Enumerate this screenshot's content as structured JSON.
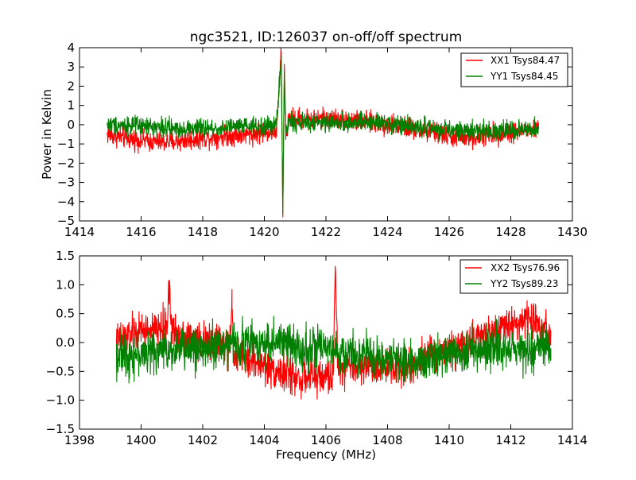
{
  "chart_data": [
    {
      "type": "line",
      "title": "ngc3521, ID:126037 on-off/off spectrum",
      "xlabel": "",
      "ylabel": "Power in Kelvin",
      "xlim": [
        1414,
        1430
      ],
      "ylim": [
        -5,
        4
      ],
      "xticks": [
        1414,
        1416,
        1418,
        1420,
        1422,
        1424,
        1426,
        1428,
        1430
      ],
      "yticks": [
        -5,
        -4,
        -3,
        -2,
        -1,
        0,
        1,
        2,
        3,
        4
      ],
      "xtick_labels": [
        "1414",
        "1416",
        "1418",
        "1420",
        "1422",
        "1424",
        "1426",
        "1428",
        "1430"
      ],
      "ytick_labels": [
        "−5",
        "−4",
        "−3",
        "−2",
        "−1",
        "0",
        "1",
        "2",
        "3",
        "4"
      ],
      "grid": false,
      "legend_position": "top-right",
      "series": [
        {
          "name": "XX1 Tsys84.47",
          "color": "#ff0000",
          "x": [
            1414.9,
            1415.5,
            1416.0,
            1416.5,
            1417.0,
            1417.5,
            1418.0,
            1418.5,
            1419.0,
            1419.5,
            1420.0,
            1420.4,
            1420.55,
            1420.6,
            1420.65,
            1420.7,
            1420.8,
            1421.0,
            1421.5,
            1422.0,
            1422.5,
            1423.0,
            1423.5,
            1424.0,
            1424.5,
            1425.0,
            1425.5,
            1426.0,
            1426.5,
            1427.0,
            1427.5,
            1428.0,
            1428.5,
            1428.9
          ],
          "y": [
            -0.5,
            -0.7,
            -0.8,
            -0.9,
            -0.9,
            -0.8,
            -0.7,
            -0.6,
            -0.55,
            -0.5,
            -0.4,
            -0.3,
            3.8,
            -4.8,
            3.0,
            -0.6,
            0.3,
            0.3,
            0.3,
            0.3,
            0.3,
            0.2,
            0.1,
            0.0,
            -0.1,
            -0.3,
            -0.4,
            -0.6,
            -0.7,
            -0.6,
            -0.5,
            -0.4,
            -0.3,
            -0.2
          ]
        },
        {
          "name": "YY1 Tsys84.45",
          "color": "#008000",
          "x": [
            1414.9,
            1415.5,
            1416.0,
            1416.5,
            1417.0,
            1417.5,
            1418.0,
            1418.5,
            1419.0,
            1419.5,
            1420.0,
            1420.4,
            1420.55,
            1420.6,
            1420.65,
            1420.7,
            1420.8,
            1421.0,
            1421.5,
            1422.0,
            1422.5,
            1423.0,
            1423.5,
            1424.0,
            1424.5,
            1425.0,
            1425.5,
            1426.0,
            1426.5,
            1427.0,
            1427.5,
            1428.0,
            1428.5,
            1428.9
          ],
          "y": [
            0.0,
            0.0,
            -0.1,
            -0.1,
            -0.2,
            -0.2,
            -0.2,
            -0.2,
            -0.1,
            -0.1,
            -0.1,
            0.0,
            3.6,
            -4.6,
            2.8,
            -0.5,
            0.2,
            0.1,
            0.1,
            0.1,
            0.1,
            0.1,
            0.1,
            0.1,
            0.0,
            -0.1,
            -0.2,
            -0.3,
            -0.3,
            -0.3,
            -0.3,
            -0.3,
            -0.3,
            -0.2
          ]
        }
      ]
    },
    {
      "type": "line",
      "title": "",
      "xlabel": "Frequency (MHz)",
      "ylabel": "",
      "xlim": [
        1398,
        1414
      ],
      "ylim": [
        -1.5,
        1.5
      ],
      "xticks": [
        1398,
        1400,
        1402,
        1404,
        1406,
        1408,
        1410,
        1412,
        1414
      ],
      "yticks": [
        -1.5,
        -1.0,
        -0.5,
        0.0,
        0.5,
        1.0,
        1.5
      ],
      "xtick_labels": [
        "1398",
        "1400",
        "1402",
        "1404",
        "1406",
        "1408",
        "1410",
        "1412",
        "1414"
      ],
      "ytick_labels": [
        "−1.5",
        "−1.0",
        "−0.5",
        "0.0",
        "0.5",
        "1.0",
        "1.5"
      ],
      "grid": false,
      "legend_position": "top-right",
      "series": [
        {
          "name": "XX2 Tsys76.96",
          "color": "#ff0000",
          "x": [
            1399.2,
            1399.5,
            1400.0,
            1400.5,
            1400.85,
            1400.9,
            1401.0,
            1401.5,
            1402.0,
            1402.5,
            1402.9,
            1402.95,
            1403.0,
            1403.5,
            1404.0,
            1404.5,
            1405.0,
            1405.5,
            1406.0,
            1406.25,
            1406.3,
            1406.4,
            1406.5,
            1407.0,
            1407.5,
            1408.0,
            1408.5,
            1409.0,
            1409.5,
            1410.0,
            1410.5,
            1411.0,
            1411.5,
            1412.0,
            1412.5,
            1413.0,
            1413.3
          ],
          "y": [
            0.0,
            0.1,
            0.2,
            0.2,
            0.3,
            1.07,
            0.2,
            0.1,
            0.0,
            0.0,
            -0.1,
            0.92,
            -0.2,
            -0.3,
            -0.4,
            -0.5,
            -0.6,
            -0.6,
            -0.6,
            -0.5,
            1.32,
            -0.5,
            -0.4,
            -0.4,
            -0.4,
            -0.4,
            -0.4,
            -0.3,
            -0.2,
            -0.1,
            0.0,
            0.1,
            0.2,
            0.3,
            0.4,
            0.3,
            0.2
          ]
        },
        {
          "name": "YY2 Tsys89.23",
          "color": "#008000",
          "x": [
            1399.2,
            1399.5,
            1400.0,
            1400.5,
            1401.0,
            1401.5,
            1402.0,
            1402.5,
            1403.0,
            1403.5,
            1404.0,
            1404.5,
            1405.0,
            1405.5,
            1406.0,
            1406.5,
            1407.0,
            1407.5,
            1408.0,
            1408.5,
            1409.0,
            1409.5,
            1410.0,
            1410.5,
            1411.0,
            1411.5,
            1412.0,
            1412.5,
            1413.0,
            1413.3
          ],
          "y": [
            -0.2,
            -0.2,
            -0.2,
            -0.15,
            -0.1,
            -0.1,
            -0.1,
            -0.05,
            -0.05,
            0.0,
            0.0,
            0.0,
            -0.05,
            -0.1,
            -0.15,
            -0.2,
            -0.2,
            -0.25,
            -0.3,
            -0.3,
            -0.3,
            -0.25,
            -0.2,
            -0.15,
            -0.1,
            -0.1,
            -0.1,
            -0.1,
            -0.1,
            -0.1
          ]
        }
      ]
    }
  ]
}
